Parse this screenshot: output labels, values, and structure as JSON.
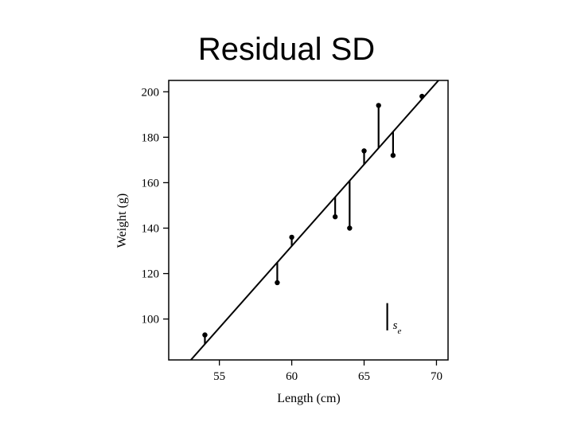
{
  "slide": {
    "title": "Residual SD"
  },
  "chart_data": {
    "type": "scatter",
    "xlabel": "Length (cm)",
    "ylabel": "Weight (g)",
    "xlim": [
      51.5,
      70.8
    ],
    "ylim": [
      82,
      205
    ],
    "xticks": [
      55,
      60,
      65,
      70
    ],
    "yticks": [
      100,
      120,
      140,
      160,
      180,
      200
    ],
    "points": [
      {
        "x": 54,
        "y": 93
      },
      {
        "x": 59,
        "y": 116
      },
      {
        "x": 60,
        "y": 136
      },
      {
        "x": 63,
        "y": 145
      },
      {
        "x": 64,
        "y": 140
      },
      {
        "x": 65,
        "y": 174
      },
      {
        "x": 66,
        "y": 194
      },
      {
        "x": 67,
        "y": 172
      },
      {
        "x": 69,
        "y": 198
      }
    ],
    "regression_line": {
      "slope": 7.19,
      "intercept": -299.3
    },
    "residuals_shown": true,
    "annotation": {
      "label": "se",
      "main": "s",
      "sub": "e",
      "x": 66.6,
      "y_bottom": 95,
      "y_top": 107
    }
  }
}
